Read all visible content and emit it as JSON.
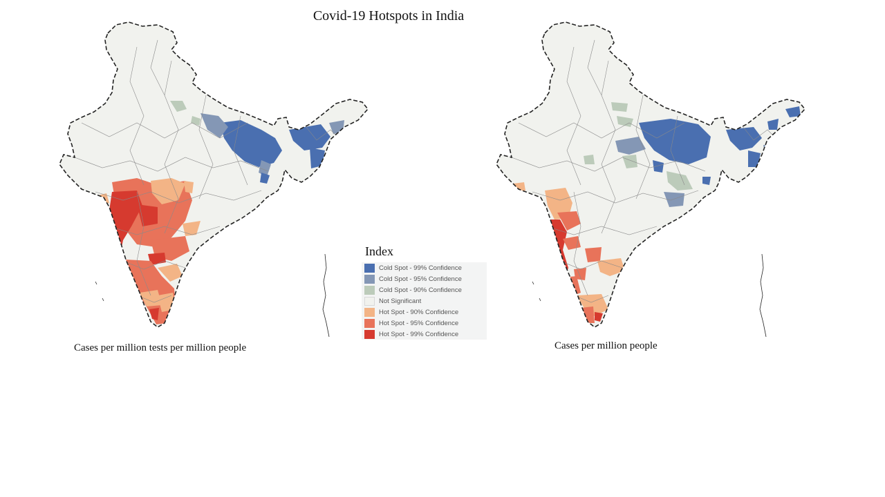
{
  "title": "Covid-19 Hotspots in India",
  "legend": {
    "title": "Index",
    "items": [
      {
        "label": "Cold Spot - 99% Confidence",
        "color": "#4a6fb0"
      },
      {
        "label": "Cold Spot - 95% Confidence",
        "color": "#8497b5"
      },
      {
        "label": "Cold Spot - 90% Confidence",
        "color": "#bccbba"
      },
      {
        "label": "Not Significant",
        "color": "#f1f2ee"
      },
      {
        "label": "Hot Spot - 90% Confidence",
        "color": "#f3b486"
      },
      {
        "label": "Hot Spot - 95% Confidence",
        "color": "#e8735a"
      },
      {
        "label": "Hot Spot - 99% Confidence",
        "color": "#d63a2f"
      }
    ]
  },
  "maps": [
    {
      "caption": "Cases per million tests per million people"
    },
    {
      "caption": "Cases per million people"
    }
  ],
  "colors": {
    "background": "#ffffff",
    "border": "#222222",
    "district_line": "#8a8a8a"
  }
}
